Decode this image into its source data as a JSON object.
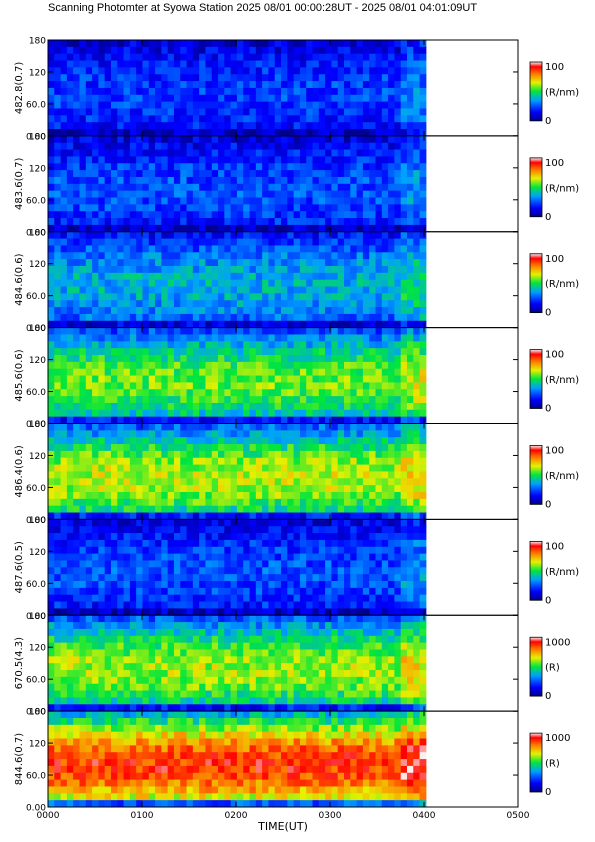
{
  "title": "Scanning Photomter at Syowa Station 2025 08/01 00:00:28UT - 2025 08/01 04:01:09UT",
  "chart_data": {
    "type": "heatmap",
    "xlabel": "TIME(UT)",
    "x_ticks": [
      "0000",
      "0100",
      "0200",
      "0300",
      "0400",
      "0500"
    ],
    "x_range_hours": [
      0,
      5
    ],
    "data_end_hours": 4.02,
    "y_ticks": [
      "0.00",
      "60.0",
      "120",
      "180"
    ],
    "ylim": [
      0,
      180
    ],
    "panels": [
      {
        "ylabel": "482.8(0.7)",
        "unit": "(R/nm)",
        "cmax": "100",
        "cmin": "0",
        "level": 0.18
      },
      {
        "ylabel": "483.6(0.7)",
        "unit": "(R/nm)",
        "cmax": "100",
        "cmin": "0",
        "level": 0.2
      },
      {
        "ylabel": "484.6(0.6)",
        "unit": "(R/nm)",
        "cmax": "100",
        "cmin": "0",
        "level": 0.3
      },
      {
        "ylabel": "485.6(0.6)",
        "unit": "(R/nm)",
        "cmax": "100",
        "cmin": "0",
        "level": 0.45
      },
      {
        "ylabel": "486.4(0.6)",
        "unit": "(R/nm)",
        "cmax": "100",
        "cmin": "0",
        "level": 0.5
      },
      {
        "ylabel": "487.6(0.5)",
        "unit": "(R/nm)",
        "cmax": "100",
        "cmin": "0",
        "level": 0.2
      },
      {
        "ylabel": "670.5(4.3)",
        "unit": "(R)",
        "cmax": "1000",
        "cmin": "0",
        "level": 0.48
      },
      {
        "ylabel": "844.6(0.7)",
        "unit": "(R)",
        "cmax": "1000",
        "cmin": "0",
        "level": 0.7
      }
    ]
  }
}
